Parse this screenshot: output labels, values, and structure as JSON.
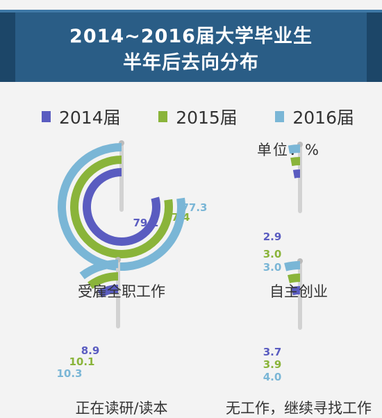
{
  "header": {
    "title_line1": "2014~2016届大学毕业生",
    "title_line2": "半年后去向分布"
  },
  "unit_label": "单位：%",
  "colors": {
    "banner_bg": "#2a5d86",
    "banner_dark": "#1c4668",
    "series_2014": "#5a5cc0",
    "series_2015": "#8ab43a",
    "series_2016": "#7ab6d6",
    "pole": "#d2d2d2"
  },
  "chart_data": {
    "type": "radial-bar",
    "unit": "%",
    "series": [
      {
        "name": "2014届",
        "color": "#5a5cc0"
      },
      {
        "name": "2015届",
        "color": "#8ab43a"
      },
      {
        "name": "2016届",
        "color": "#7ab6d6"
      }
    ],
    "categories": [
      {
        "label": "受雇全职工作",
        "values": [
          79.2,
          77.4,
          77.3
        ]
      },
      {
        "label": "自主创业",
        "values": [
          2.9,
          3.0,
          3.0
        ]
      },
      {
        "label": "正在读研/读本",
        "values": [
          8.9,
          10.1,
          10.3
        ]
      },
      {
        "label": "无工作，继续寻找工作",
        "values": [
          3.7,
          3.9,
          4.0
        ]
      }
    ]
  }
}
